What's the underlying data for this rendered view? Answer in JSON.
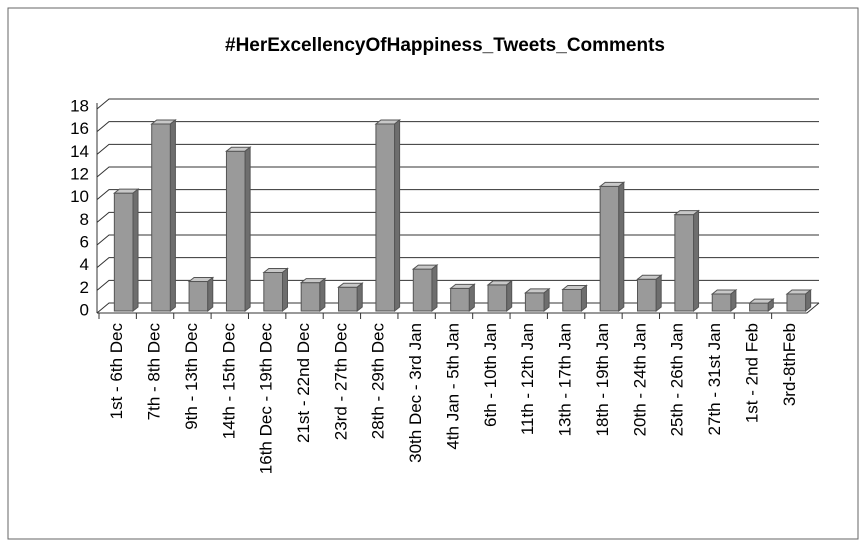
{
  "chart_data": {
    "type": "bar",
    "title": "#HerExcellencyOfHappiness_Tweets_Comments",
    "categories": [
      "1st - 6th Dec",
      "7th - 8th Dec",
      "9th - 13th Dec",
      "14th - 15th Dec",
      "16th Dec - 19th Dec",
      "21st - 22nd Dec",
      "23rd - 27th Dec",
      "28th - 29th Dec",
      "30th Dec - 3rd Jan",
      "4th Jan - 5th Jan",
      "6th - 10th Jan",
      "11th - 12th Jan",
      "13th - 17th Jan",
      "18th - 19th Jan",
      "20th - 24th Jan",
      "25th - 26th Jan",
      "27th - 31st Jan",
      "1st - 2nd Feb",
      "3rd-8thFeb"
    ],
    "values": [
      10.4,
      16.5,
      2.6,
      14.1,
      3.4,
      2.5,
      2.1,
      16.5,
      3.7,
      2.0,
      2.3,
      1.6,
      1.9,
      11.0,
      2.8,
      8.5,
      1.5,
      0.7,
      1.5
    ],
    "color": "#9a9a9a",
    "ylim": [
      0,
      18
    ],
    "yticks": [
      0,
      2,
      4,
      6,
      8,
      10,
      12,
      14,
      16,
      18
    ],
    "grid": true
  }
}
